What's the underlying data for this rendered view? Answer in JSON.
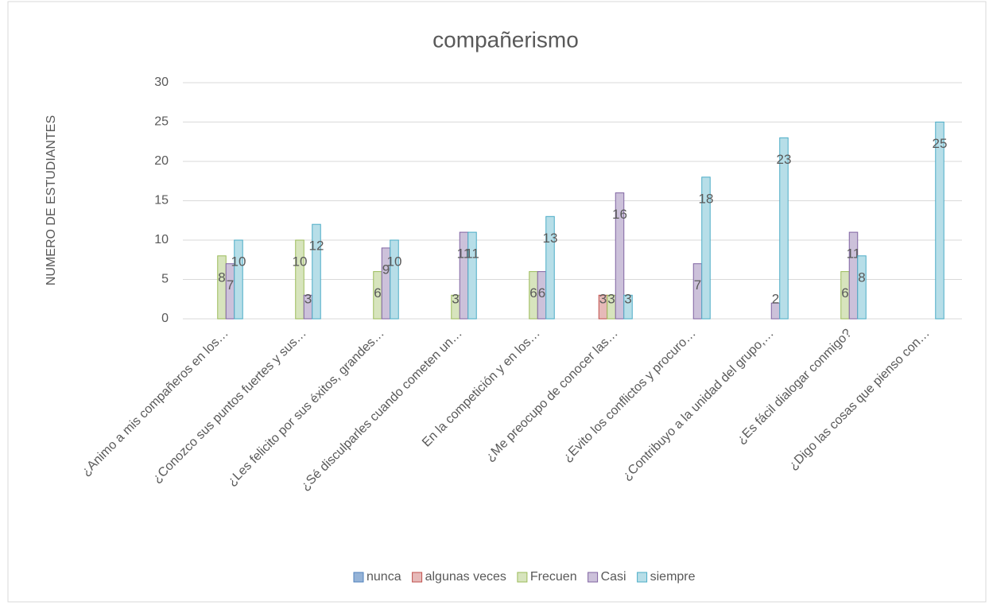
{
  "chart_data": {
    "type": "bar",
    "title": "compañerismo",
    "y_label": "NUMERO DE ESTUDIANTES",
    "categories": [
      "¿Animo a mis compañeros en los…",
      "¿Conozco sus puntos fuertes y sus…",
      "¿Les felicito por sus éxitos, grandes…",
      "¿Sé disculparles cuando cometen un…",
      "En la competición y en los…",
      "¿Me preocupo de conocer las…",
      "¿Evito los conflictos y procuro…",
      "¿Contribuyo a la unidad del grupo,…",
      "¿Es fácil dialogar conmigo?",
      "¿Digo las cosas que pienso con…"
    ],
    "series": [
      {
        "name": "nunca",
        "color": "#95b3d7",
        "border": "#4f81bd",
        "values": [
          null,
          null,
          null,
          null,
          null,
          null,
          null,
          null,
          null,
          null
        ]
      },
      {
        "name": "algunas veces",
        "color": "#e6b9b8",
        "border": "#c0504d",
        "values": [
          null,
          null,
          null,
          null,
          null,
          3,
          null,
          null,
          null,
          null
        ]
      },
      {
        "name": "Frecuen",
        "color": "#d7e4bd",
        "border": "#9bbb59",
        "values": [
          8,
          10,
          6,
          3,
          6,
          3,
          null,
          null,
          6,
          null
        ]
      },
      {
        "name": "Casi",
        "color": "#ccc1da",
        "border": "#8064a2",
        "values": [
          7,
          3,
          9,
          11,
          6,
          16,
          7,
          2,
          11,
          null
        ]
      },
      {
        "name": "siempre",
        "color": "#b7dee8",
        "border": "#4bacc6",
        "values": [
          10,
          12,
          10,
          11,
          13,
          3,
          18,
          23,
          8,
          25
        ]
      }
    ],
    "ylim": [
      0,
      30
    ],
    "yticks": [
      0,
      5,
      10,
      15,
      20,
      25,
      30
    ],
    "grid": true,
    "legend": "bottom"
  }
}
